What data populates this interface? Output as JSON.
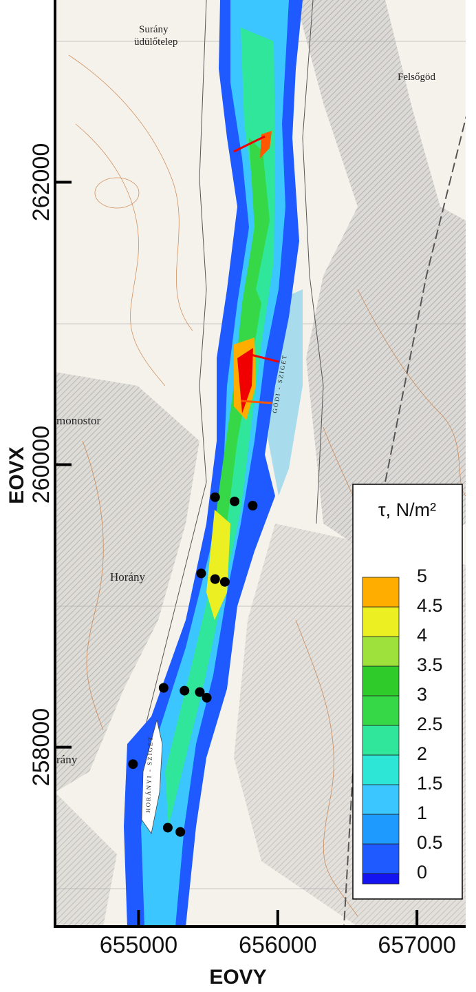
{
  "map": {
    "x_axis": {
      "label": "EOVY",
      "lim": [
        654400,
        657350
      ],
      "ticks": [
        655000,
        656000,
        657000
      ]
    },
    "y_axis": {
      "label": "EOVX",
      "lim": [
        256730,
        263290
      ],
      "ticks": [
        258000,
        260000,
        262000
      ]
    },
    "legend": {
      "title": "τ, N/m²",
      "levels": [
        0,
        0.5,
        1,
        1.5,
        2,
        2.5,
        3,
        3.5,
        4,
        4.5,
        5
      ],
      "colors": [
        "#1414f0",
        "#1e5aff",
        "#1e9aff",
        "#3cc6ff",
        "#2ee6d6",
        "#2fe69a",
        "#36d848",
        "#2ecb2a",
        "#9ee03c",
        "#ecf022",
        "#ffae00",
        "#ff5800",
        "#f00000"
      ]
    },
    "points": {
      "x": [
        655550,
        655690,
        655820,
        655450,
        655550,
        655620,
        655180,
        655330,
        655440,
        655490,
        654960,
        655210,
        655300
      ],
      "y": [
        259770,
        259740,
        259710,
        259230,
        259190,
        259170,
        258420,
        258400,
        258390,
        258350,
        257880,
        257430,
        257400
      ]
    },
    "places": [
      "Surány",
      "üdülőtelep",
      "Felsőgöd",
      "monostor",
      "Horány",
      "rány",
      "GÖDI - SZIGET",
      "HORÁNYI - SZIGET"
    ]
  }
}
